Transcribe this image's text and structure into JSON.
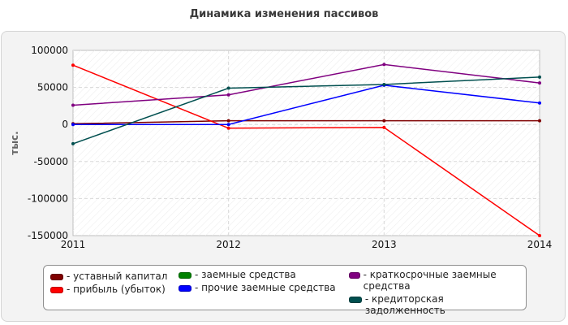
{
  "chart_data": {
    "type": "line",
    "title": "Динамика изменения пассивов",
    "ylabel": "тыс.",
    "xlabel": "",
    "categories": [
      "2011",
      "2012",
      "2013",
      "2014"
    ],
    "ylim": [
      -150000,
      100000
    ],
    "yticks": [
      100000,
      50000,
      0,
      -50000,
      -100000,
      -150000
    ],
    "ytick_labels": [
      "100000",
      "50000",
      "0",
      "-50000",
      "-100000",
      "-150000"
    ],
    "grid": true,
    "series": [
      {
        "name": "- уставный капитал",
        "color": "#7f0000",
        "values": [
          1000,
          5000,
          5000,
          5000
        ]
      },
      {
        "name": "- прибыль (убыток)",
        "color": "#ff0000",
        "values": [
          80000,
          -5000,
          -4000,
          -150000
        ]
      },
      {
        "name": "- заемные средства",
        "color": "#008000",
        "values": [
          null,
          null,
          null,
          null
        ]
      },
      {
        "name": "- прочие заемные средства",
        "color": "#0000ff",
        "values": [
          0,
          0,
          53000,
          29000
        ]
      },
      {
        "name": "- краткосрочные заемные средства",
        "color": "#800080",
        "values": [
          26000,
          40000,
          81000,
          56000
        ]
      },
      {
        "name": "- кредиторская задолженность",
        "color": "#004f4f",
        "values": [
          -26000,
          49000,
          54000,
          64000
        ]
      }
    ],
    "legend_position": "bottom"
  }
}
